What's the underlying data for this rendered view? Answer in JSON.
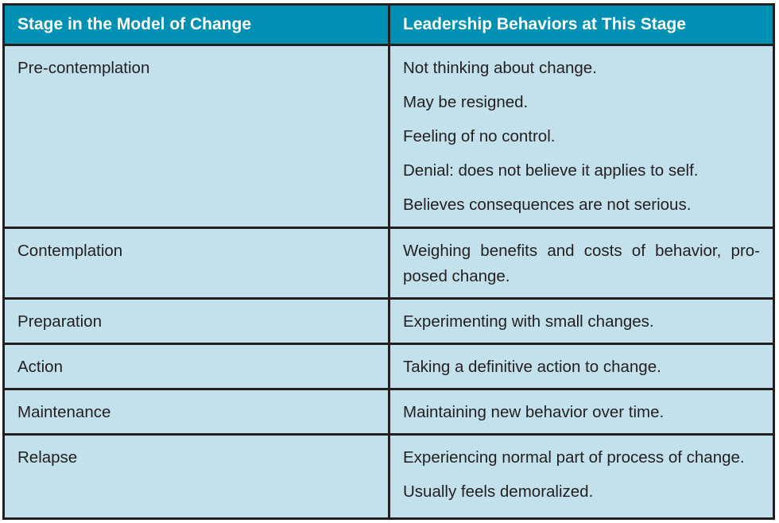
{
  "table": {
    "headers": {
      "stage": "Stage in the Model of Change",
      "behaviors": "Leadership Behaviors at This Stage"
    },
    "rows": [
      {
        "stage": "Pre-contemplation",
        "behaviors": [
          "Not thinking about change.",
          "May be resigned.",
          "Feeling of no control.",
          "Denial: does not believe it applies to self.",
          "Believes consequences are not serious."
        ]
      },
      {
        "stage": "Contemplation",
        "behaviors": [
          "Weighing benefits and costs of behavior, pro-posed change."
        ]
      },
      {
        "stage": "Preparation",
        "behaviors": [
          "Experimenting with small changes."
        ]
      },
      {
        "stage": "Action",
        "behaviors": [
          "Taking a definitive action to change."
        ]
      },
      {
        "stage": "Maintenance",
        "behaviors": [
          "Maintaining new behavior over time."
        ]
      },
      {
        "stage": "Relapse",
        "behaviors": [
          "Experiencing normal part of process of change.",
          "Usually feels demoralized."
        ]
      }
    ]
  },
  "colors": {
    "header_bg": "#0090b3",
    "cell_bg": "#c2e1ec",
    "border": "#231f20",
    "header_text": "#ffffff",
    "body_text": "#231f20"
  }
}
